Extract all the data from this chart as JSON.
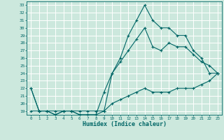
{
  "xlabel": "Humidex (Indice chaleur)",
  "ylabel": "",
  "bg_color": "#cce8dd",
  "grid_color": "#ffffff",
  "line_color": "#006666",
  "xlim": [
    -0.5,
    23.5
  ],
  "ylim": [
    18.5,
    33.5
  ],
  "xticks": [
    0,
    1,
    2,
    3,
    4,
    5,
    6,
    7,
    8,
    9,
    10,
    11,
    12,
    13,
    14,
    15,
    16,
    17,
    18,
    19,
    20,
    21,
    22,
    23
  ],
  "yticks": [
    19,
    20,
    21,
    22,
    23,
    24,
    25,
    26,
    27,
    28,
    29,
    30,
    31,
    32,
    33
  ],
  "line_max": [
    22,
    19,
    19,
    18.5,
    19,
    19,
    18.5,
    18.5,
    18.5,
    19,
    24,
    26,
    29,
    31,
    33,
    31,
    30,
    30,
    29,
    29,
    27,
    26,
    24,
    24
  ],
  "line_mean": [
    22,
    19,
    19,
    18.5,
    19,
    19,
    18.5,
    18.5,
    18.5,
    21.5,
    24,
    25.5,
    27,
    28.5,
    30,
    27.5,
    27,
    28,
    27.5,
    27.5,
    26.5,
    25.5,
    25,
    24
  ],
  "line_min": [
    19,
    19,
    19,
    19,
    19,
    19,
    19,
    19,
    19,
    19,
    20,
    20.5,
    21,
    21.5,
    22,
    21.5,
    21.5,
    21.5,
    22,
    22,
    22,
    22.5,
    23,
    24
  ]
}
